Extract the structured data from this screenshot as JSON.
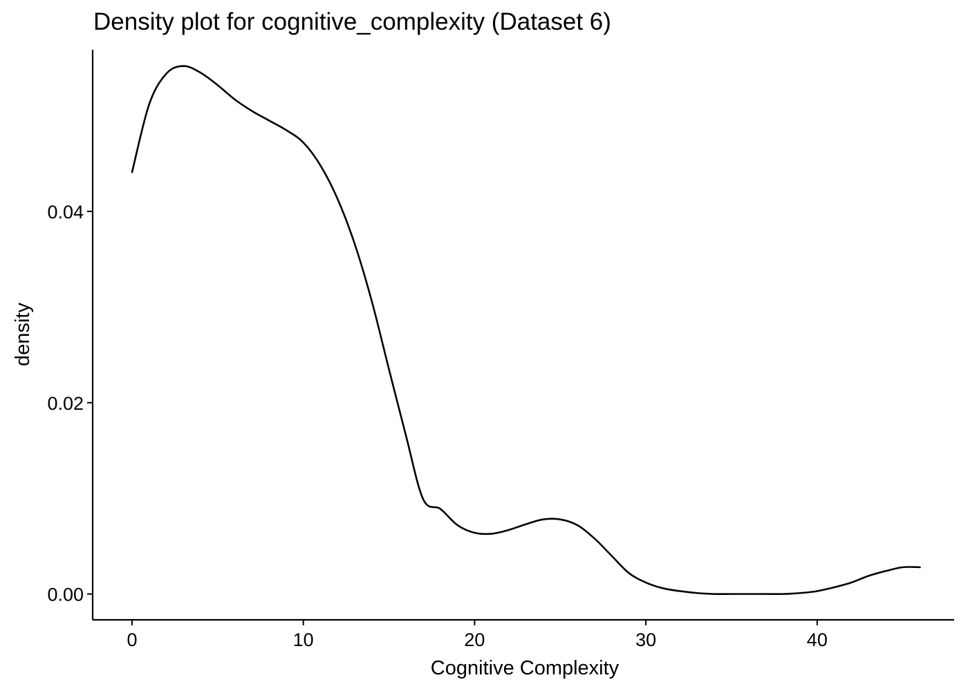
{
  "chart_data": {
    "type": "line",
    "title": "Density plot for cognitive_complexity (Dataset 6)",
    "xlabel": "Cognitive Complexity",
    "ylabel": "density",
    "xlim": [
      -2.3,
      48.0
    ],
    "ylim": [
      -0.0027,
      0.0569
    ],
    "x_ticks": [
      0,
      10,
      20,
      30,
      40
    ],
    "x_tick_labels": [
      "0",
      "10",
      "20",
      "30",
      "40"
    ],
    "y_ticks": [
      0.0,
      0.02,
      0.04
    ],
    "y_tick_labels": [
      "0.00",
      "0.02",
      "0.04"
    ],
    "grid": false,
    "legend": "none",
    "line_color": "#000000",
    "series": [
      {
        "x": [
          0,
          1,
          2,
          3,
          4,
          5,
          6,
          7,
          8,
          9,
          10,
          11,
          12,
          13,
          14,
          15,
          16,
          17,
          18,
          19,
          20,
          21,
          22,
          23,
          24,
          25,
          26,
          27,
          28,
          29,
          30,
          31,
          32,
          33,
          34,
          35,
          36,
          37,
          38,
          39,
          40,
          41,
          42,
          43,
          44,
          45,
          46
        ],
        "y": [
          0.0441,
          0.0512,
          0.0544,
          0.0552,
          0.0545,
          0.0532,
          0.0517,
          0.0505,
          0.0495,
          0.0485,
          0.0472,
          0.0448,
          0.0413,
          0.0366,
          0.0306,
          0.0235,
          0.0165,
          0.0099,
          0.0089,
          0.0072,
          0.0064,
          0.0063,
          0.0067,
          0.0073,
          0.0078,
          0.0078,
          0.0072,
          0.0058,
          0.004,
          0.0022,
          0.0012,
          0.0006,
          0.0003,
          0.0001,
          0.0,
          0.0,
          0.0,
          0.0,
          0.0,
          0.0001,
          0.0003,
          0.0007,
          0.0012,
          0.0019,
          0.0024,
          0.0028,
          0.0028
        ]
      }
    ]
  }
}
